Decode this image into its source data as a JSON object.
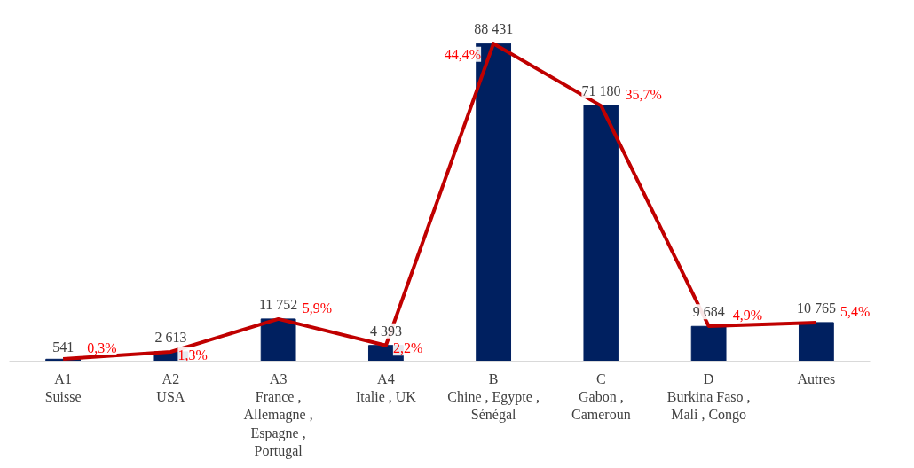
{
  "chart_data": {
    "type": "bar",
    "categories": [
      "A1\nSuisse",
      "A2\nUSA",
      "A3\nFrance ,\nAllemagne ,\nEspagne ,\nPortugal",
      "A4\nItalie , UK",
      "B\nChine , Egypte ,\nSénégal",
      "C\nGabon ,\nCameroun",
      "D\nBurkina Faso ,\nMali , Congo",
      "Autres"
    ],
    "series": [
      {
        "color": "#002060",
        "values": [
          541,
          2613,
          11752,
          4393,
          88431,
          71180,
          9684,
          10765
        ]
      },
      {
        "type": "line",
        "axis": "y2",
        "color": "#c00000",
        "values": [
          0.3,
          1.3,
          5.9,
          2.2,
          44.4,
          35.7,
          4.9,
          5.4
        ],
        "value_labels": [
          "0,3%",
          "1,3%",
          "5,9%",
          "2,2%",
          "44,4%",
          "35,7%",
          "4,9%",
          "5,4%"
        ]
      }
    ],
    "data_labels": true,
    "tick_labels": "x",
    "grid": false
  }
}
